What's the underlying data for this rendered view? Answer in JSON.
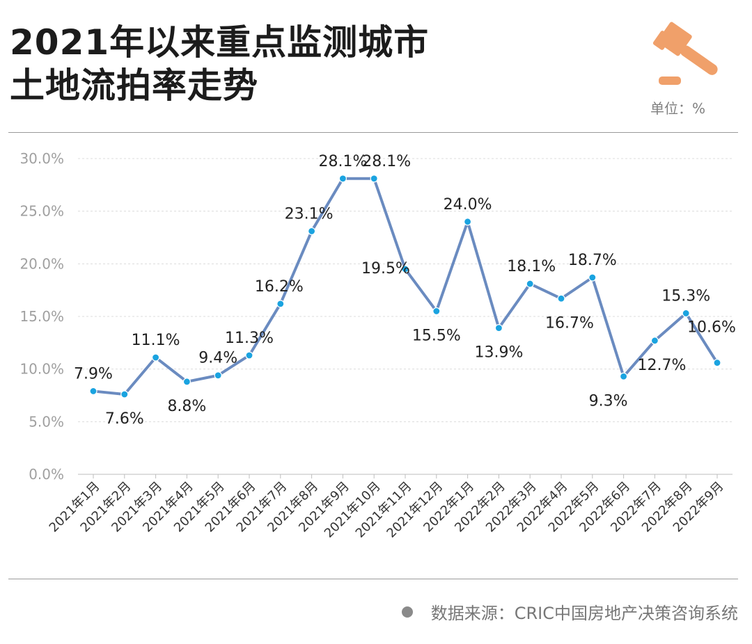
{
  "header": {
    "title_line1": "2021年以来重点监测城市",
    "title_line2": "土地流拍率走势",
    "unit_label": "单位：%",
    "icon": "gavel-icon",
    "icon_color": "#F0A06A"
  },
  "footer": {
    "source_text": "数据来源：CRIC中国房地产决策咨询系统"
  },
  "chart_data": {
    "type": "line",
    "categories": [
      "2021年1月",
      "2021年2月",
      "2021年3月",
      "2021年4月",
      "2021年5月",
      "2021年6月",
      "2021年7月",
      "2021年8月",
      "2021年9月",
      "2021年10月",
      "2021年11月",
      "2021年12月",
      "2022年1月",
      "2022年2月",
      "2022年3月",
      "2022年4月",
      "2022年5月",
      "2022年6月",
      "2022年7月",
      "2022年8月",
      "2022年9月"
    ],
    "series": [
      {
        "values": [
          7.9,
          7.6,
          11.1,
          8.8,
          9.4,
          11.3,
          16.2,
          23.1,
          28.1,
          28.1,
          19.5,
          15.5,
          24.0,
          13.9,
          18.1,
          16.7,
          18.7,
          9.3,
          12.7,
          15.3,
          10.6
        ],
        "labels": [
          "7.9%",
          "7.6%",
          "11.1%",
          "8.8%",
          "9.4%",
          "11.3%",
          "16.2%",
          "23.1%",
          "28.1%",
          "28.1%",
          "19.5%",
          "15.5%",
          "24.0%",
          "13.9%",
          "18.1%",
          "16.7%",
          "18.7%",
          "9.3%",
          "12.7%",
          "15.3%",
          "10.6%"
        ]
      }
    ],
    "yticks": [
      "0.0%",
      "5.0%",
      "10.0%",
      "15.0%",
      "20.0%",
      "25.0%",
      "30.0%"
    ],
    "ylim": [
      0,
      30
    ],
    "grid": true,
    "colors": {
      "line": "#6A8BC0",
      "marker": "#1AA3E0",
      "grid": "#dcdcdc",
      "tick_text": "#a0a0a0",
      "label_text": "#222222"
    }
  }
}
